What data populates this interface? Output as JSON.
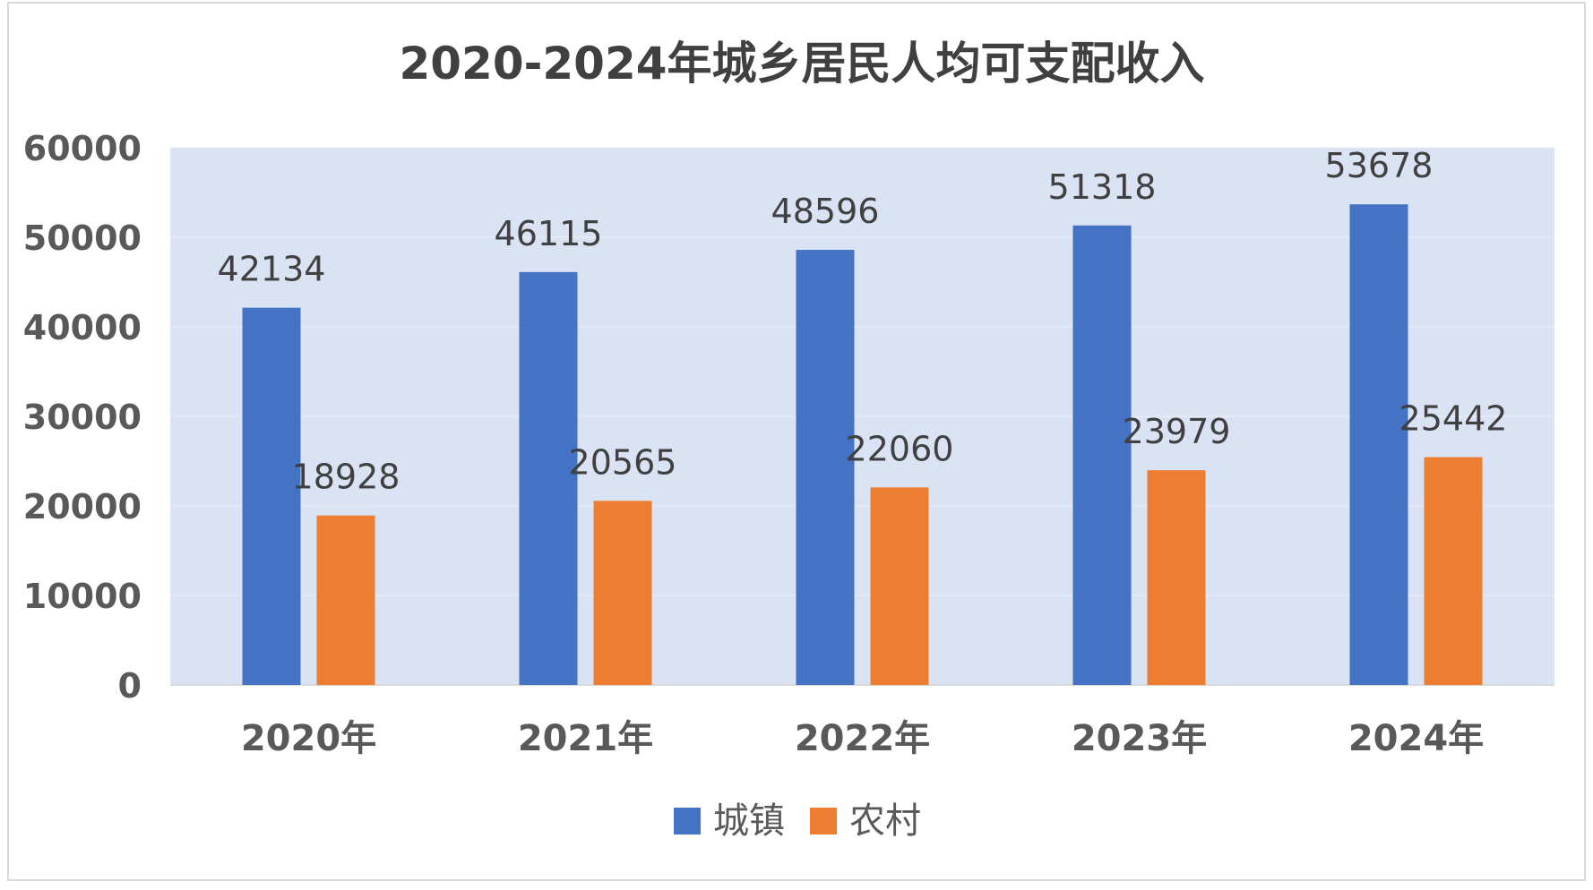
{
  "chart_data": {
    "type": "bar",
    "title": "2020-2024年城乡居民人均可支配收入",
    "categories": [
      "2020年",
      "2021年",
      "2022年",
      "2023年",
      "2024年"
    ],
    "series": [
      {
        "name": "城镇",
        "values": [
          42134,
          46115,
          48596,
          51318,
          53678
        ],
        "color": "#4472C4"
      },
      {
        "name": "农村",
        "values": [
          18928,
          20565,
          22060,
          23979,
          25442
        ],
        "color": "#ED7D31"
      }
    ],
    "ylim": [
      0,
      60000
    ],
    "yticks": [
      "0",
      "10000",
      "20000",
      "30000",
      "40000",
      "50000",
      "60000"
    ],
    "grid": true,
    "legend": "bottom",
    "plot_background": "#DAE3F3",
    "gridline_color": "#E8EDF6"
  }
}
